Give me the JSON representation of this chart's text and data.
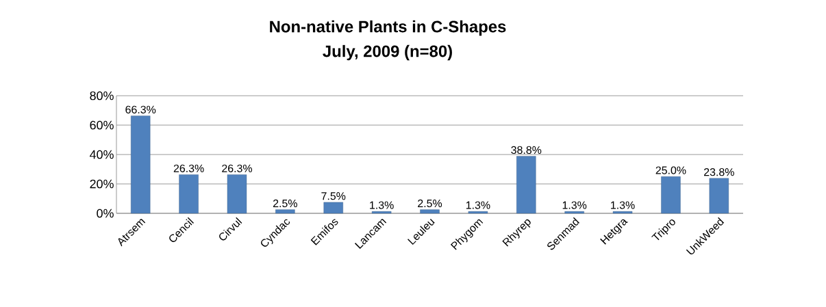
{
  "chart_data": {
    "type": "bar",
    "title": "Non-native Plants in C-Shapes",
    "subtitle": "July, 2009 (n=80)",
    "categories": [
      "Atrsem",
      "Cencil",
      "Cirvul",
      "Cyndac",
      "Emifos",
      "Lancam",
      "Leuleu",
      "Phygom",
      "Rhyrep",
      "Senmad",
      "Hetgra",
      "Tripro",
      "UnkWeed"
    ],
    "values": [
      66.3,
      26.3,
      26.3,
      2.5,
      7.5,
      1.3,
      2.5,
      1.3,
      38.8,
      1.3,
      1.3,
      25.0,
      23.8
    ],
    "value_labels": [
      "66.3%",
      "26.3%",
      "26.3%",
      "2.5%",
      "7.5%",
      "1.3%",
      "2.5%",
      "1.3%",
      "38.8%",
      "1.3%",
      "1.3%",
      "25.0%",
      "23.8%"
    ],
    "color": "#4f81bd",
    "ylim": [
      0,
      80
    ],
    "yticks": [
      {
        "value": 0,
        "label": "0%"
      },
      {
        "value": 20,
        "label": "20%"
      },
      {
        "value": 40,
        "label": "40%"
      },
      {
        "value": 60,
        "label": "60%"
      },
      {
        "value": 80,
        "label": "80%"
      }
    ],
    "grid": "y"
  }
}
